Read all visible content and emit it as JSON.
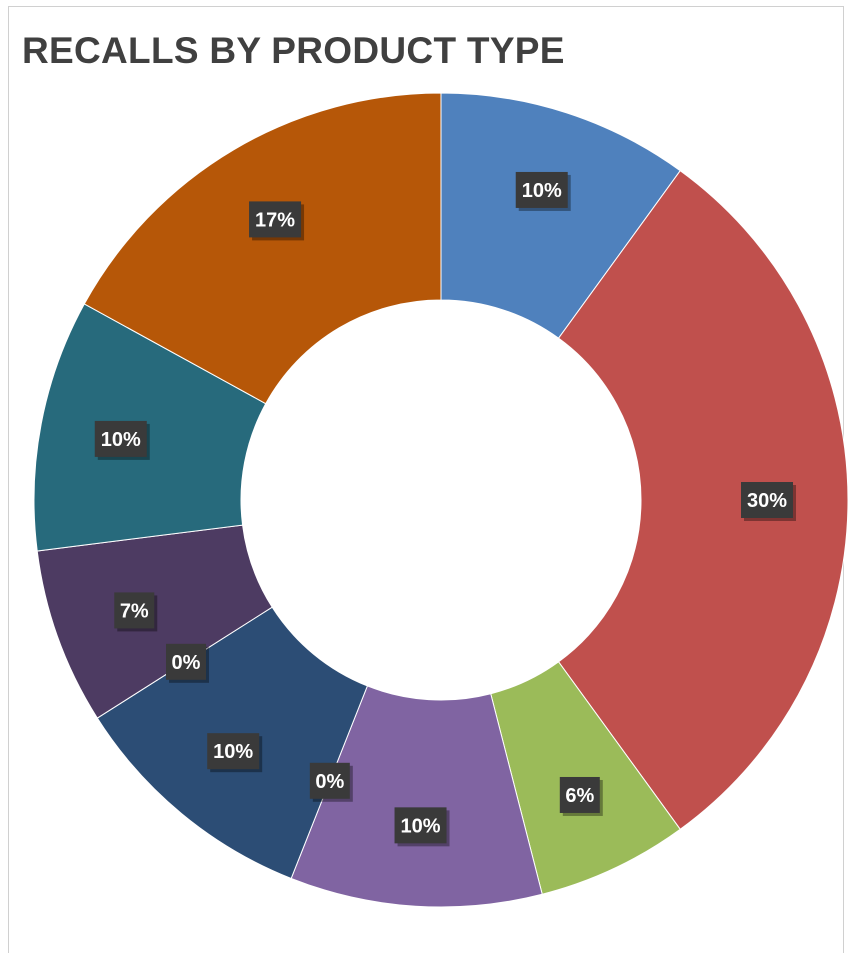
{
  "chart_data": {
    "type": "pie",
    "variant": "donut",
    "title": "RECALLS BY PRODUCT TYPE",
    "slices": [
      {
        "value": 10,
        "label": "10%",
        "color": "#4f81bd"
      },
      {
        "value": 30,
        "label": "30%",
        "color": "#c0504d"
      },
      {
        "value": 6,
        "label": "6%",
        "color": "#9bbb59"
      },
      {
        "value": 10,
        "label": "10%",
        "color": "#8064a2"
      },
      {
        "value": 0,
        "label": "0%",
        "color": "#4bacc6"
      },
      {
        "value": 10,
        "label": "10%",
        "color": "#2c4d75"
      },
      {
        "value": 0,
        "label": "0%",
        "color": "#772c2a"
      },
      {
        "value": 7,
        "label": "7%",
        "color": "#4d3b62"
      },
      {
        "value": 10,
        "label": "10%",
        "color": "#276a7c"
      },
      {
        "value": 17,
        "label": "17%",
        "color": "#b65708"
      }
    ],
    "legend": "none"
  }
}
